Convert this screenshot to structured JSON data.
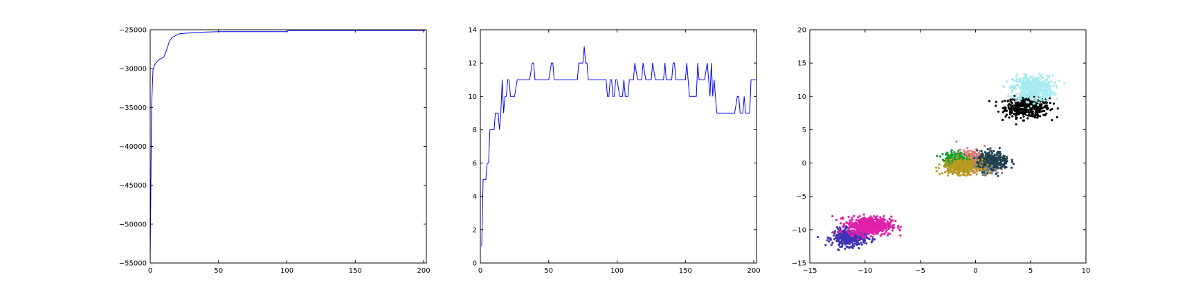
{
  "chart_data": [
    {
      "type": "line",
      "xlim": [
        0,
        202
      ],
      "ylim": [
        -55000,
        -25000
      ],
      "xticks": [
        0,
        50,
        100,
        150,
        200
      ],
      "yticks": [
        -55000,
        -50000,
        -45000,
        -40000,
        -35000,
        -30000,
        -25000
      ],
      "grid": false,
      "color": "#0000ff",
      "series": [
        {
          "x": [
            0,
            1,
            2,
            3,
            4,
            5,
            6,
            8,
            10,
            12,
            14,
            16,
            18,
            20,
            22,
            25,
            30,
            35,
            40,
            50,
            60,
            80,
            100,
            101,
            120,
            150,
            180,
            201
          ],
          "values": [
            -54800,
            -35000,
            -30200,
            -29600,
            -29300,
            -29100,
            -28900,
            -28700,
            -28500,
            -27600,
            -26500,
            -26000,
            -25800,
            -25600,
            -25500,
            -25450,
            -25400,
            -25350,
            -25300,
            -25250,
            -25250,
            -25250,
            -25250,
            -25100,
            -25100,
            -25100,
            -25100,
            -25100
          ]
        }
      ]
    },
    {
      "type": "line",
      "xlim": [
        0,
        202
      ],
      "ylim": [
        0,
        14
      ],
      "xticks": [
        0,
        50,
        100,
        150,
        200
      ],
      "yticks": [
        0,
        2,
        4,
        6,
        8,
        10,
        12,
        14
      ],
      "grid": false,
      "color": "#0000ff",
      "series": [
        {
          "x": [
            1,
            2,
            4,
            5,
            6,
            7,
            8,
            9,
            10,
            11,
            12,
            13,
            14,
            15,
            16,
            17,
            18,
            19,
            20,
            21,
            22,
            23,
            25,
            27,
            28,
            30,
            32,
            34,
            36,
            38,
            39,
            40,
            41,
            42,
            44,
            46,
            48,
            50,
            52,
            53,
            54,
            55,
            57,
            60,
            63,
            66,
            69,
            71,
            72,
            73,
            74,
            75,
            76,
            77,
            78,
            79,
            82,
            85,
            88,
            90,
            92,
            93,
            94,
            95,
            96,
            97,
            98,
            99,
            100,
            102,
            104,
            105,
            106,
            108,
            109,
            110,
            112,
            113,
            115,
            117,
            118,
            119,
            121,
            124,
            125,
            126,
            128,
            130,
            132,
            134,
            135,
            136,
            138,
            140,
            141,
            142,
            143,
            145,
            147,
            150,
            151,
            152,
            153,
            155,
            158,
            159,
            160,
            161,
            162,
            164,
            166,
            167,
            168,
            169,
            170,
            171,
            172,
            173,
            174,
            175,
            176,
            178,
            180,
            183,
            186,
            188,
            189,
            190,
            191,
            192,
            193,
            194,
            195,
            196,
            197,
            198,
            199,
            200,
            201,
            202
          ],
          "values": [
            1,
            5,
            5,
            6,
            6,
            8,
            8,
            8,
            8,
            9,
            9,
            9,
            8,
            9,
            11,
            9,
            10,
            10,
            11,
            11,
            10,
            10,
            10,
            11,
            11,
            11,
            11,
            11,
            11,
            12,
            12,
            11,
            11,
            11,
            11,
            11,
            11,
            11,
            12,
            12,
            11,
            11,
            11,
            11,
            11,
            11,
            11,
            11,
            12,
            12,
            12,
            12,
            13,
            12,
            12,
            11,
            11,
            11,
            11,
            11,
            11,
            10,
            10,
            11,
            11,
            10,
            10,
            11,
            11,
            10,
            10,
            11,
            10,
            10,
            11,
            11,
            11,
            12,
            11,
            11,
            11,
            12,
            11,
            11,
            11,
            12,
            11,
            11,
            11,
            11,
            12,
            11,
            11,
            11,
            12,
            12,
            11,
            11,
            11,
            11,
            12,
            11,
            10,
            10,
            10,
            12,
            11,
            11,
            11,
            11,
            12,
            11,
            10,
            12,
            10,
            11,
            10,
            9,
            9,
            9,
            9,
            9,
            9,
            9,
            9,
            10,
            10,
            9,
            9,
            9,
            10,
            9,
            9,
            9,
            9,
            11,
            11,
            11,
            11,
            11
          ]
        }
      ]
    },
    {
      "type": "scatter",
      "xlim": [
        -15,
        10
      ],
      "ylim": [
        -15,
        20
      ],
      "xticks": [
        -15,
        -10,
        -5,
        0,
        5,
        10
      ],
      "yticks": [
        -15,
        -10,
        -5,
        0,
        5,
        10,
        15,
        20
      ],
      "grid": false,
      "clusters": [
        {
          "color": "#000000",
          "center": [
            4.7,
            8.4
          ],
          "spread": [
            1.1,
            0.85
          ],
          "count": 500
        },
        {
          "color": "#a6ebf0",
          "center": [
            5.2,
            11.2
          ],
          "spread": [
            1.0,
            1.05
          ],
          "count": 520
        },
        {
          "color": "#3d33b8",
          "center": [
            -11.4,
            -11.2
          ],
          "spread": [
            0.85,
            0.7
          ],
          "count": 380
        },
        {
          "color": "#e020a8",
          "center": [
            -9.6,
            -9.4
          ],
          "spread": [
            1.1,
            0.75
          ],
          "count": 600
        },
        {
          "color": "#e07878",
          "center": [
            -0.3,
            0.5
          ],
          "spread": [
            0.8,
            0.85
          ],
          "count": 220
        },
        {
          "color": "#808080",
          "center": [
            1.1,
            -0.4
          ],
          "spread": [
            0.6,
            0.7
          ],
          "count": 200
        },
        {
          "color": "#10a030",
          "center": [
            -1.9,
            0.6
          ],
          "spread": [
            0.6,
            0.6
          ],
          "count": 180
        },
        {
          "color": "#203f4f",
          "center": [
            1.6,
            0.3
          ],
          "spread": [
            0.8,
            0.8
          ],
          "count": 260
        },
        {
          "color": "#b89a20",
          "center": [
            -1.3,
            -0.6
          ],
          "spread": [
            0.9,
            0.6
          ],
          "count": 320
        }
      ]
    }
  ]
}
